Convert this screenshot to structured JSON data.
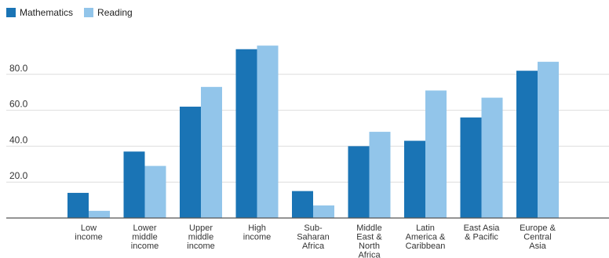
{
  "chart_data": {
    "type": "bar",
    "categories": [
      [
        "Low",
        "income"
      ],
      [
        "Lower",
        "middle",
        "income"
      ],
      [
        "Upper",
        "middle",
        "income"
      ],
      [
        "High",
        "income"
      ],
      [
        "Sub-",
        "Saharan",
        "Africa"
      ],
      [
        "Middle",
        "East &",
        "North",
        "Africa"
      ],
      [
        "Latin",
        "America &",
        "Caribbean"
      ],
      [
        "East Asia",
        "& Pacific"
      ],
      [
        "Europe &",
        "Central",
        "Asia"
      ]
    ],
    "series": [
      {
        "name": "Mathematics",
        "color": "#1a74b5",
        "values": [
          14,
          37,
          62,
          94,
          15,
          40,
          43,
          56,
          82
        ]
      },
      {
        "name": "Reading",
        "color": "#92c5ea",
        "values": [
          4,
          29,
          73,
          96,
          7,
          48,
          71,
          67,
          87
        ]
      }
    ],
    "ylim": [
      0,
      100
    ],
    "yticks": [
      "20.0",
      "40.0",
      "60.0",
      "80.0"
    ],
    "ytick_values": [
      20,
      40,
      60,
      80
    ],
    "grid": true,
    "legend_position": "top-left"
  }
}
